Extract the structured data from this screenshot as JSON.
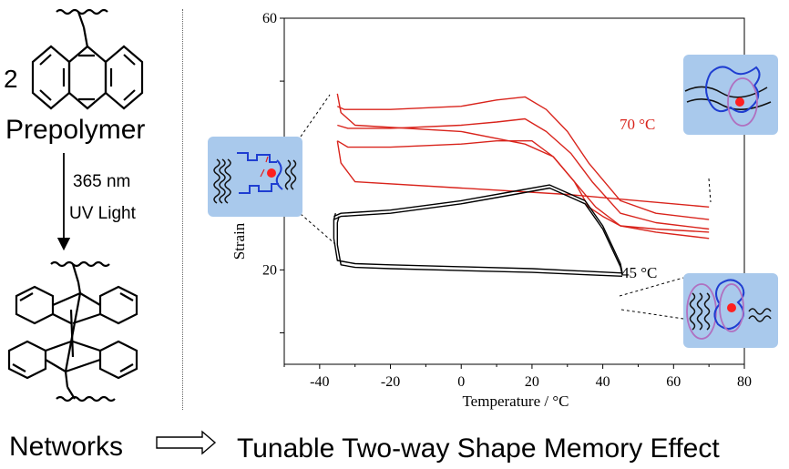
{
  "left_panel": {
    "multiplier": "2",
    "prepolymer_label": "Prepolymer",
    "wavelength_label": "365 nm",
    "light_label": "UV Light",
    "networks_label": "Networks"
  },
  "footer": {
    "effect_label": "Tunable Two-way Shape Memory Effect"
  },
  "chart_data": {
    "type": "line",
    "xlabel": "Temperature / °C",
    "ylabel": "Strain",
    "xlim": [
      -50,
      80
    ],
    "ylim": [
      5,
      60
    ],
    "x_ticks": [
      -40,
      -20,
      0,
      20,
      40,
      60,
      80
    ],
    "y_ticks_labeled": [
      20,
      60
    ],
    "grid": false,
    "annotations": [
      {
        "text": "70 °C",
        "color": "#d9241c",
        "series": "red"
      },
      {
        "text": "45 °C",
        "color": "#000000",
        "series": "black"
      }
    ],
    "series": [
      {
        "color": "#d9241c",
        "x": [
          -35,
          -34,
          -30,
          0,
          18,
          26,
          32,
          36,
          40,
          45,
          55,
          70
        ],
        "y": [
          48,
          45,
          43,
          42,
          40,
          38,
          34,
          30,
          28.5,
          27,
          26,
          25
        ]
      },
      {
        "color": "#d9241c",
        "x": [
          70,
          55,
          45,
          36,
          30,
          24,
          18,
          10,
          0,
          -20,
          -33,
          -35
        ],
        "y": [
          28,
          29,
          31,
          37,
          42,
          45.5,
          47.5,
          47,
          46,
          45.5,
          45.5,
          46
        ]
      },
      {
        "color": "#d9241c",
        "x": [
          70,
          55,
          45,
          37,
          31,
          24,
          18,
          10,
          0,
          -20,
          -32,
          -35
        ],
        "y": [
          26.5,
          27.5,
          29,
          34,
          38.5,
          42,
          44,
          43.5,
          43,
          42.5,
          42.5,
          43
        ]
      },
      {
        "color": "#d9241c",
        "x": [
          70,
          55,
          45,
          38,
          32,
          26,
          20,
          10,
          0,
          -20,
          -32,
          -35
        ],
        "y": [
          26,
          26.5,
          27,
          30,
          34,
          38,
          40.5,
          40.5,
          40,
          39.5,
          39.5,
          40.5
        ]
      },
      {
        "color": "#d9241c",
        "x": [
          -35,
          -34,
          -30,
          0,
          30,
          50,
          70
        ],
        "y": [
          40.5,
          37,
          34,
          33,
          32,
          31,
          30
        ]
      },
      {
        "color": "#000000",
        "x": [
          -36,
          -34,
          -20,
          0,
          15,
          25,
          35,
          40,
          45,
          45.5
        ],
        "y": [
          28.5,
          29,
          29.5,
          31,
          32.5,
          33.5,
          31,
          27,
          21,
          19.5
        ]
      },
      {
        "color": "#000000",
        "x": [
          -36,
          -34,
          -20,
          0,
          15,
          25,
          35,
          40,
          45,
          45.5
        ],
        "y": [
          28,
          28.5,
          29,
          30.5,
          32,
          33,
          30.5,
          26.5,
          20.5,
          19.2
        ]
      },
      {
        "color": "#000000",
        "x": [
          45.5,
          20,
          0,
          -20,
          -30,
          -35,
          -36,
          -36,
          -35.5
        ],
        "y": [
          19.5,
          20.2,
          20.5,
          20.8,
          21,
          21.5,
          25,
          28,
          29
        ]
      },
      {
        "color": "#000000",
        "x": [
          45.5,
          20,
          0,
          -20,
          -30,
          -34,
          -35,
          -35,
          -34.5
        ],
        "y": [
          19.0,
          19.6,
          19.9,
          20.2,
          20.4,
          20.8,
          24,
          27.5,
          28.5
        ]
      }
    ]
  }
}
